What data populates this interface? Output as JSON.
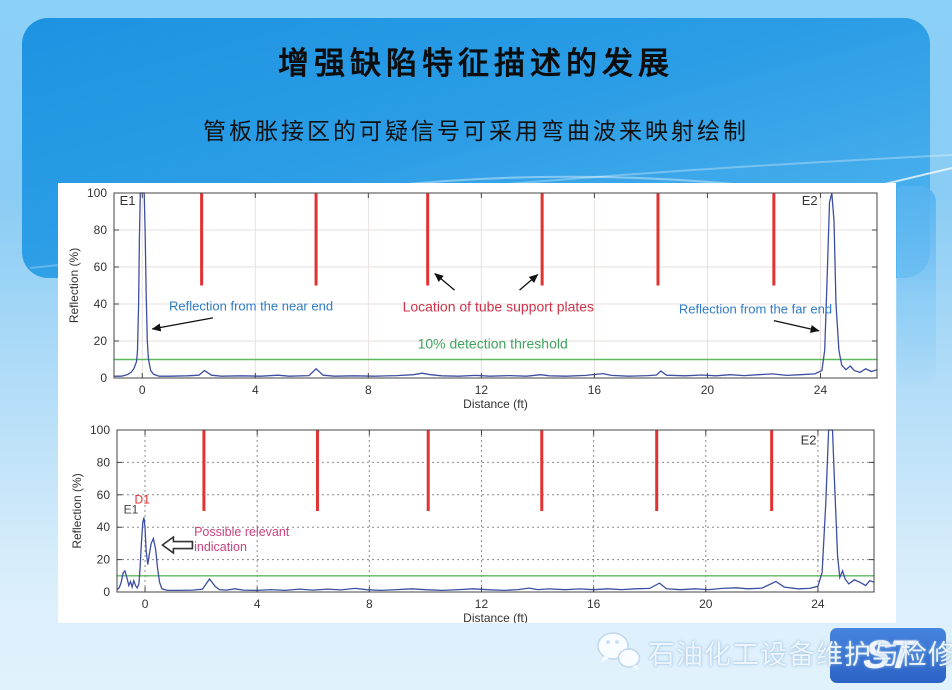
{
  "slide": {
    "title": "增强缺陷特征描述的发展",
    "subtitle": "管板胀接区的可疑信号可采用弯曲波来映射绘制"
  },
  "watermark": {
    "site_name": "石油化工设备维护与检修网",
    "logo_text": "ST",
    "wechat_icon": "wechat-chat-bubbles"
  },
  "colors": {
    "support_plate_red": "#e23333",
    "threshold_green": "#5cb85c",
    "trace_blue": "#3d4fa1",
    "annotation_blue": "#2e7cc3",
    "annotation_red": "#cf3349",
    "annotation_green": "#3fa45f",
    "annotation_magenta": "#c9417e",
    "header_blue": "#1d93e1"
  },
  "chart_data": [
    {
      "id": "chart-top",
      "type": "line",
      "title": "",
      "xlabel": "Distance (ft)",
      "ylabel": "Reflection (%)",
      "xlim": [
        -1,
        26
      ],
      "ylim": [
        0,
        100
      ],
      "xticks": [
        0,
        4,
        8,
        12,
        16,
        20,
        24
      ],
      "yticks": [
        0,
        20,
        40,
        60,
        80,
        100
      ],
      "grid_style": "solid",
      "grid_color": "#eadfdf",
      "plot": {
        "l": 56,
        "t": 10,
        "r": 819,
        "b": 195
      },
      "threshold_value": 10,
      "threshold_color": "#5cb85c",
      "support_plate_x": [
        2.1,
        6.15,
        10.1,
        14.15,
        18.25,
        22.35
      ],
      "support_plate_span": [
        100,
        50
      ],
      "support_plate_color": "#e23333",
      "trace_color": "#3d4fa1",
      "points": [
        [
          -1,
          1
        ],
        [
          -0.75,
          1
        ],
        [
          -0.6,
          1.5
        ],
        [
          -0.5,
          2
        ],
        [
          -0.4,
          3
        ],
        [
          -0.3,
          5
        ],
        [
          -0.25,
          7
        ],
        [
          -0.2,
          9
        ],
        [
          -0.17,
          15
        ],
        [
          -0.13,
          40
        ],
        [
          -0.1,
          75
        ],
        [
          -0.07,
          100
        ],
        [
          0.07,
          100
        ],
        [
          0.1,
          80
        ],
        [
          0.14,
          45
        ],
        [
          0.18,
          20
        ],
        [
          0.22,
          10
        ],
        [
          0.3,
          4
        ],
        [
          0.4,
          2
        ],
        [
          0.6,
          1
        ],
        [
          1,
          1
        ],
        [
          1.6,
          1.2
        ],
        [
          2,
          1.5
        ],
        [
          2.2,
          4
        ],
        [
          2.45,
          1.5
        ],
        [
          2.8,
          1
        ],
        [
          3.5,
          1.2
        ],
        [
          4.2,
          1
        ],
        [
          4.8,
          1.5
        ],
        [
          5.2,
          1
        ],
        [
          5.9,
          1.3
        ],
        [
          6.15,
          5
        ],
        [
          6.4,
          1.5
        ],
        [
          6.8,
          1
        ],
        [
          7.5,
          1.2
        ],
        [
          8.2,
          1
        ],
        [
          9,
          1.3
        ],
        [
          9.6,
          1.8
        ],
        [
          9.9,
          2.6
        ],
        [
          10.2,
          1.8
        ],
        [
          10.6,
          1.2
        ],
        [
          11.2,
          1
        ],
        [
          11.8,
          1.4
        ],
        [
          12.3,
          1
        ],
        [
          13,
          1.3
        ],
        [
          13.6,
          1
        ],
        [
          14.1,
          1.8
        ],
        [
          14.4,
          1.2
        ],
        [
          15,
          1
        ],
        [
          15.7,
          1.4
        ],
        [
          16.3,
          2.4
        ],
        [
          16.6,
          1.4
        ],
        [
          17.2,
          1
        ],
        [
          17.9,
          1.3
        ],
        [
          18.2,
          1.6
        ],
        [
          18.35,
          3.8
        ],
        [
          18.55,
          1.5
        ],
        [
          19.2,
          1.2
        ],
        [
          19.8,
          1.6
        ],
        [
          20.3,
          1.2
        ],
        [
          20.8,
          1.8
        ],
        [
          21.3,
          1.3
        ],
        [
          21.8,
          1.8
        ],
        [
          22.3,
          2.2
        ],
        [
          22.8,
          1.4
        ],
        [
          23.3,
          1.8
        ],
        [
          23.8,
          2.2
        ],
        [
          24.05,
          4
        ],
        [
          24.15,
          15
        ],
        [
          24.25,
          60
        ],
        [
          24.32,
          95
        ],
        [
          24.4,
          100
        ],
        [
          24.48,
          85
        ],
        [
          24.55,
          40
        ],
        [
          24.65,
          15
        ],
        [
          24.75,
          7
        ],
        [
          24.9,
          4.5
        ],
        [
          25.05,
          6.5
        ],
        [
          25.2,
          4
        ],
        [
          25.4,
          3
        ],
        [
          25.6,
          5
        ],
        [
          25.8,
          3.5
        ],
        [
          26,
          4.5
        ]
      ],
      "labels": [
        {
          "text": "E1",
          "x": -0.8,
          "y": 93.5,
          "color": "#333333",
          "size": 13,
          "anchor": "start"
        },
        {
          "text": "E2",
          "x": 23.9,
          "y": 93.5,
          "color": "#333333",
          "size": 13,
          "anchor": "end"
        }
      ],
      "annotations": [
        {
          "text": "Reflection from the near end",
          "x": 3.85,
          "y": 36.5,
          "color": "#2e7cc3",
          "size": 13,
          "anchor": "middle",
          "arrows": [
            {
              "x1": 2.5,
              "y1": 32.5,
              "x2": 0.35,
              "y2": 26.5
            }
          ]
        },
        {
          "text": "Location of tube support plates",
          "x": 12.6,
          "y": 36,
          "color": "#cf3349",
          "size": 14,
          "anchor": "middle",
          "arrows": [
            {
              "x1": 11.05,
              "y1": 47.5,
              "x2": 10.35,
              "y2": 56.5
            },
            {
              "x1": 13.35,
              "y1": 47.5,
              "x2": 14.0,
              "y2": 56.0
            }
          ]
        },
        {
          "text": "10% detection threshold",
          "x": 12.4,
          "y": 16,
          "color": "#3fa45f",
          "size": 14,
          "anchor": "middle",
          "arrows": []
        },
        {
          "text": "Reflection from the far end",
          "x": 21.7,
          "y": 35,
          "color": "#2e7cc3",
          "size": 13,
          "anchor": "middle",
          "arrows": [
            {
              "x1": 22.35,
              "y1": 31,
              "x2": 23.95,
              "y2": 25.5
            }
          ]
        }
      ]
    },
    {
      "id": "chart-bottom",
      "type": "line",
      "title": "",
      "xlabel": "Distance (ft)",
      "ylabel": "Reflection (%)",
      "xlim": [
        -1,
        26
      ],
      "ylim": [
        0,
        100
      ],
      "xticks": [
        0,
        4,
        8,
        12,
        16,
        20,
        24
      ],
      "yticks": [
        0,
        20,
        40,
        60,
        80,
        100
      ],
      "grid_style": "dashed",
      "grid_color": "#8a8a8a",
      "plot": {
        "l": 59,
        "t": 15,
        "r": 816,
        "b": 177
      },
      "threshold_value": 10,
      "threshold_color": "#5cb85c",
      "support_plate_x": [
        2.1,
        6.15,
        10.1,
        14.15,
        18.25,
        22.35
      ],
      "support_plate_span": [
        100,
        50
      ],
      "support_plate_color": "#e23333",
      "trace_color": "#3d4fa1",
      "points": [
        [
          -1,
          1.5
        ],
        [
          -0.92,
          2.5
        ],
        [
          -0.85,
          6
        ],
        [
          -0.78,
          12
        ],
        [
          -0.72,
          13
        ],
        [
          -0.65,
          9
        ],
        [
          -0.58,
          4
        ],
        [
          -0.52,
          6.5
        ],
        [
          -0.46,
          3
        ],
        [
          -0.4,
          7
        ],
        [
          -0.34,
          4
        ],
        [
          -0.28,
          2.5
        ],
        [
          -0.22,
          5
        ],
        [
          -0.18,
          14
        ],
        [
          -0.13,
          30
        ],
        [
          -0.08,
          43
        ],
        [
          -0.04,
          46
        ],
        [
          0,
          40
        ],
        [
          0.04,
          25
        ],
        [
          0.1,
          17
        ],
        [
          0.16,
          24
        ],
        [
          0.22,
          30
        ],
        [
          0.3,
          33
        ],
        [
          0.38,
          26
        ],
        [
          0.45,
          14
        ],
        [
          0.52,
          6
        ],
        [
          0.6,
          2
        ],
        [
          0.8,
          1
        ],
        [
          1.2,
          1
        ],
        [
          1.7,
          1.2
        ],
        [
          2.05,
          1.8
        ],
        [
          2.3,
          8
        ],
        [
          2.5,
          3.5
        ],
        [
          2.65,
          1.5
        ],
        [
          2.9,
          1.2
        ],
        [
          3.2,
          2
        ],
        [
          3.5,
          1.2
        ],
        [
          4,
          1
        ],
        [
          4.5,
          1.5
        ],
        [
          5,
          1
        ],
        [
          5.5,
          1.8
        ],
        [
          6,
          1.2
        ],
        [
          6.5,
          1.8
        ],
        [
          7,
          1.3
        ],
        [
          7.5,
          2.2
        ],
        [
          7.9,
          1.4
        ],
        [
          8.4,
          1
        ],
        [
          9,
          1.5
        ],
        [
          9.5,
          2
        ],
        [
          10,
          1.4
        ],
        [
          10.6,
          1
        ],
        [
          11.2,
          1.5
        ],
        [
          11.7,
          2
        ],
        [
          12.2,
          1.4
        ],
        [
          12.8,
          1
        ],
        [
          13.3,
          1.5
        ],
        [
          13.7,
          2.4
        ],
        [
          14,
          1.5
        ],
        [
          14.4,
          1.9
        ],
        [
          15,
          1.4
        ],
        [
          15.5,
          1.9
        ],
        [
          16,
          1.4
        ],
        [
          16.5,
          2
        ],
        [
          17,
          1.5
        ],
        [
          17.5,
          2
        ],
        [
          18,
          2.2
        ],
        [
          18.35,
          5.5
        ],
        [
          18.6,
          2
        ],
        [
          19.1,
          1.4
        ],
        [
          19.6,
          2
        ],
        [
          20.1,
          1.5
        ],
        [
          20.6,
          2.2
        ],
        [
          21.1,
          2.6
        ],
        [
          21.5,
          2
        ],
        [
          22,
          2.4
        ],
        [
          22.5,
          6.5
        ],
        [
          22.8,
          3
        ],
        [
          23.3,
          2
        ],
        [
          23.7,
          2.2
        ],
        [
          24,
          3.5
        ],
        [
          24.15,
          12
        ],
        [
          24.28,
          55
        ],
        [
          24.38,
          100
        ],
        [
          24.52,
          100
        ],
        [
          24.6,
          65
        ],
        [
          24.7,
          22
        ],
        [
          24.78,
          9
        ],
        [
          24.88,
          13
        ],
        [
          24.97,
          8
        ],
        [
          25.1,
          5
        ],
        [
          25.3,
          7.5
        ],
        [
          25.5,
          6
        ],
        [
          25.7,
          4
        ],
        [
          25.85,
          7
        ],
        [
          26,
          6
        ]
      ],
      "labels": [
        {
          "text": "D1",
          "x": -0.1,
          "y": 54.5,
          "color": "#e03030",
          "size": 12,
          "anchor": "middle"
        },
        {
          "text": "E1",
          "x": -0.5,
          "y": 48.5,
          "color": "#444444",
          "size": 12,
          "anchor": "middle"
        },
        {
          "text": "E2",
          "x": 23.95,
          "y": 91,
          "color": "#333333",
          "size": 13,
          "anchor": "end"
        }
      ],
      "annotations": [
        {
          "lines": [
            "Possible relevant",
            "indication"
          ],
          "x": 1.75,
          "y": 34.5,
          "color": "#c9417e",
          "size": 12.5,
          "anchor": "start",
          "arrows": []
        },
        {
          "shape": "block-arrow-left",
          "x": 0.62,
          "y": 29,
          "color": "#333333",
          "arrows": []
        }
      ]
    }
  ]
}
